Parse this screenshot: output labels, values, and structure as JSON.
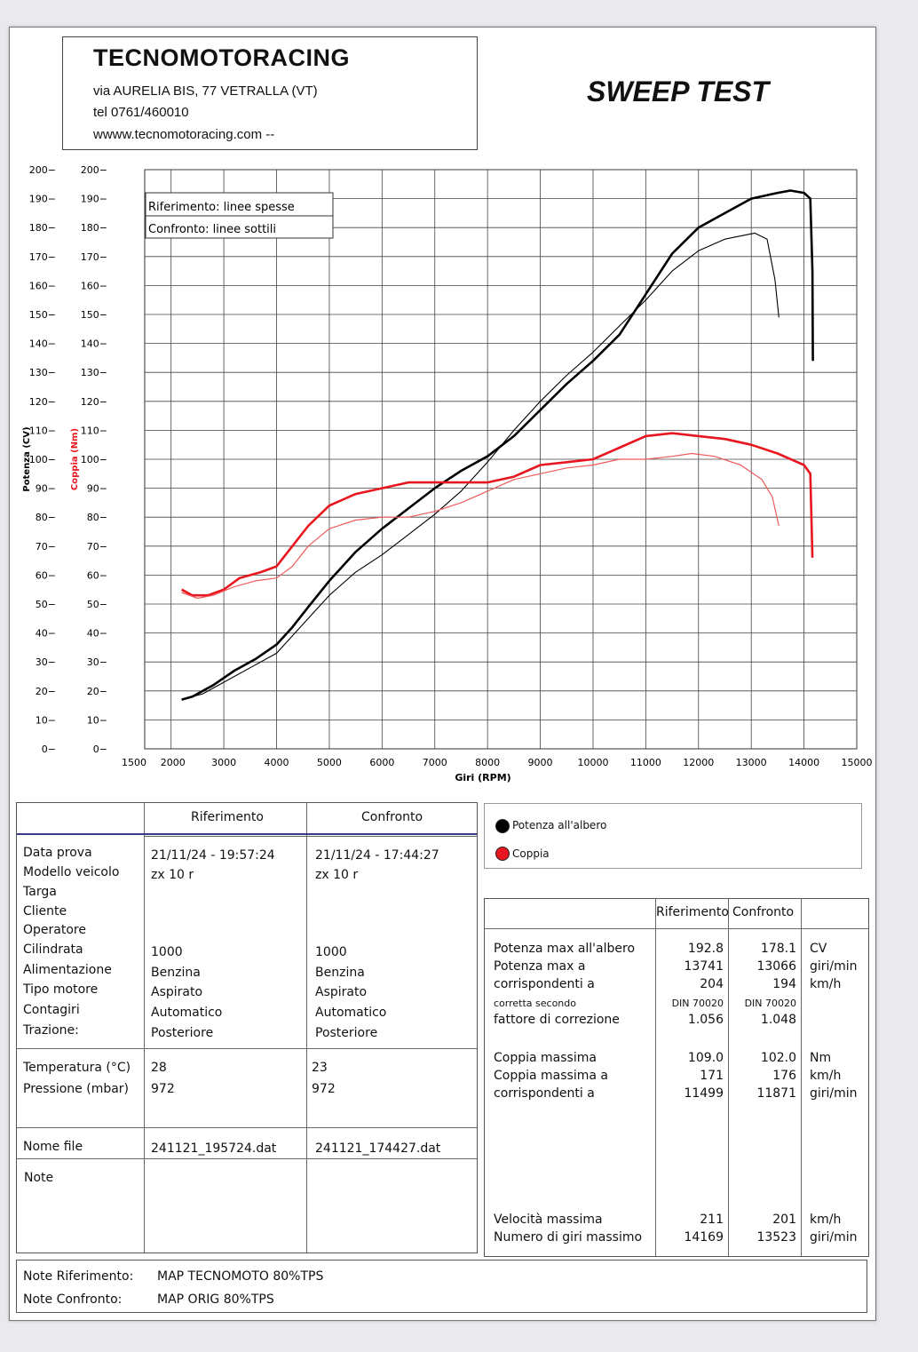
{
  "header": {
    "company": "TECNOMOTORACING",
    "address": "via AURELIA BIS, 77 VETRALLA (VT)",
    "phone": "tel 0761/460010",
    "website": "wwww.tecnomotoracing.com  --",
    "test_title": "SWEEP TEST"
  },
  "chart_data": {
    "type": "line",
    "xlabel": "Giri (RPM)",
    "ylabel_left": "Potenza (CV)",
    "ylabel_right": "Coppia (Nm)",
    "xlim": [
      1500,
      15000
    ],
    "ylim": [
      0,
      200
    ],
    "x_ticks": [
      "2000",
      "3000",
      "4000",
      "5000",
      "6000",
      "7000",
      "8000",
      "9000",
      "10000",
      "11000",
      "12000",
      "13000",
      "14000",
      "15000"
    ],
    "x_first_tick": "1500",
    "y_ticks": [
      "0",
      "10",
      "20",
      "30",
      "40",
      "50",
      "60",
      "70",
      "80",
      "90",
      "100",
      "110",
      "120",
      "130",
      "140",
      "150",
      "160",
      "170",
      "180",
      "190",
      "200"
    ],
    "legend_box": [
      "Riferimento: linee spesse",
      "Confronto: linee sottili"
    ],
    "colors": {
      "power": "#000000",
      "torque": "#e8161f",
      "torque_thin": "#ef5a5a"
    },
    "series": [
      {
        "name": "Potenza all'albero",
        "variant": "Riferimento",
        "x": [
          2200,
          2400,
          2800,
          3200,
          3600,
          4000,
          4300,
          4600,
          5000,
          5500,
          6000,
          6500,
          7000,
          7500,
          8000,
          8500,
          9000,
          9500,
          10000,
          10500,
          11000,
          11500,
          12000,
          12500,
          13000,
          13500,
          13741,
          14000,
          14120,
          14160,
          14169
        ],
        "y": [
          17,
          18,
          22,
          27,
          31,
          36,
          42,
          49,
          58,
          68,
          76,
          83,
          90,
          96,
          101,
          108,
          117,
          126,
          134,
          143,
          157,
          171,
          180,
          185,
          190,
          192,
          192.8,
          192,
          190,
          165,
          134
        ]
      },
      {
        "name": "Potenza all'albero",
        "variant": "Confronto",
        "x": [
          2200,
          2600,
          3000,
          3500,
          4000,
          4500,
          5000,
          5500,
          6000,
          6500,
          7000,
          7500,
          8000,
          8500,
          9000,
          9500,
          10000,
          10500,
          11000,
          11500,
          12000,
          12500,
          13066,
          13300,
          13450,
          13523
        ],
        "y": [
          17,
          19,
          23,
          28,
          33,
          43,
          53,
          61,
          67,
          74,
          81,
          89,
          99,
          110,
          120,
          129,
          137,
          146,
          155,
          165,
          172,
          176,
          178.1,
          176,
          162,
          149
        ]
      },
      {
        "name": "Coppia",
        "variant": "Riferimento",
        "x": [
          2200,
          2400,
          2700,
          3000,
          3300,
          3700,
          4000,
          4300,
          4600,
          5000,
          5500,
          6000,
          6500,
          7000,
          7500,
          8000,
          8500,
          9000,
          9500,
          10000,
          10500,
          11000,
          11499,
          12000,
          12500,
          13000,
          13500,
          14000,
          14120,
          14160
        ],
        "y": [
          55,
          53,
          53,
          55,
          59,
          61,
          63,
          70,
          77,
          84,
          88,
          90,
          92,
          92,
          92,
          92,
          94,
          98,
          99,
          100,
          104,
          108,
          109,
          108,
          107,
          105,
          102,
          98,
          95,
          66
        ]
      },
      {
        "name": "Coppia",
        "variant": "Confronto",
        "x": [
          2200,
          2500,
          2800,
          3200,
          3600,
          4000,
          4300,
          4600,
          5000,
          5500,
          6000,
          6500,
          7000,
          7500,
          8000,
          8500,
          9000,
          9500,
          10000,
          10500,
          11000,
          11500,
          11871,
          12300,
          12800,
          13200,
          13400,
          13523
        ],
        "y": [
          54,
          52,
          53,
          56,
          58,
          59,
          63,
          70,
          76,
          79,
          80,
          80,
          82,
          85,
          89,
          93,
          95,
          97,
          98,
          100,
          100,
          101,
          102,
          101,
          98,
          93,
          87,
          77
        ]
      }
    ]
  },
  "legend": {
    "power_label": "Potenza all'albero",
    "torque_label": "Coppia"
  },
  "info_table": {
    "col_headers": [
      "Riferimento",
      "Confronto"
    ],
    "rows": [
      {
        "label": "Data prova",
        "ref": "21/11/24 - 19:57:24",
        "cmp": "21/11/24 - 17:44:27"
      },
      {
        "label": "Modello veicolo",
        "ref": "zx 10 r",
        "cmp": "zx 10 r"
      },
      {
        "label": "Targa",
        "ref": "",
        "cmp": ""
      },
      {
        "label": "Cliente",
        "ref": "",
        "cmp": ""
      },
      {
        "label": "Operatore",
        "ref": "",
        "cmp": ""
      },
      {
        "label": "Cilindrata",
        "ref": "1000",
        "cmp": "1000"
      },
      {
        "label": "Alimentazione",
        "ref": "Benzina",
        "cmp": "Benzina"
      },
      {
        "label": "Tipo motore",
        "ref": "Aspirato",
        "cmp": "Aspirato"
      },
      {
        "label": "Contagiri",
        "ref": "Automatico",
        "cmp": "Automatico"
      },
      {
        "label": "Trazione:",
        "ref": "Posteriore",
        "cmp": "Posteriore"
      }
    ],
    "env_rows": [
      {
        "label": "Temperatura (°C)",
        "ref": "28",
        "cmp": "23"
      },
      {
        "label": "Pressione (mbar)",
        "ref": "972",
        "cmp": "972"
      }
    ],
    "file_label": "Nome file",
    "file_ref": "241121_195724.dat",
    "file_cmp": "241121_174427.dat",
    "note_label": "Note"
  },
  "results_table": {
    "col_headers": [
      "Riferimento",
      "Confronto"
    ],
    "power_max": {
      "label": "Potenza max all'albero",
      "ref": "192.8",
      "cmp": "178.1",
      "unit": "CV"
    },
    "power_rpm": {
      "label": "Potenza max a",
      "ref": "13741",
      "cmp": "13066",
      "unit": "giri/min"
    },
    "power_speed": {
      "label": "corrispondenti a",
      "ref": "204",
      "cmp": "194",
      "unit": "km/h"
    },
    "correction_norm": {
      "label": "corretta secondo",
      "ref": "DIN 70020",
      "cmp": "DIN 70020"
    },
    "correction_factor": {
      "label": "fattore di correzione",
      "ref": "1.056",
      "cmp": "1.048"
    },
    "torque_max": {
      "label": "Coppia massima",
      "ref": "109.0",
      "cmp": "102.0",
      "unit": "Nm"
    },
    "torque_speed": {
      "label": "Coppia massima a",
      "ref": "171",
      "cmp": "176",
      "unit": "km/h"
    },
    "torque_rpm": {
      "label": "corrispondenti a",
      "ref": "11499",
      "cmp": "11871",
      "unit": "giri/min"
    },
    "max_speed": {
      "label": "Velocità massima",
      "ref": "211",
      "cmp": "201",
      "unit": "km/h"
    },
    "max_rpm": {
      "label": "Numero di giri massimo",
      "ref": "14169",
      "cmp": "13523",
      "unit": "giri/min"
    }
  },
  "notes": {
    "ref_label": "Note Riferimento:",
    "ref_value": "MAP TECNOMOTO 80%TPS",
    "cmp_label": "Note Confronto:",
    "cmp_value": "MAP ORIG 80%TPS"
  }
}
